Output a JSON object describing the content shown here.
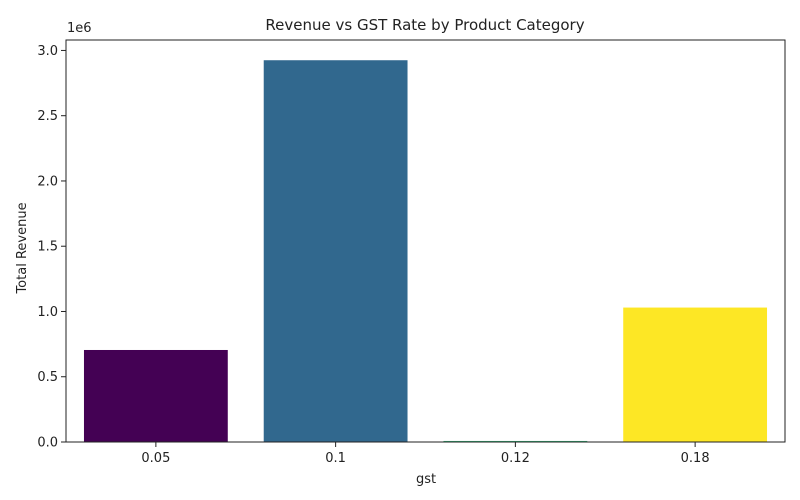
{
  "chart_data": {
    "type": "bar",
    "title": "Revenue vs GST Rate by Product Category",
    "xlabel": "gst",
    "ylabel": "Total Revenue",
    "y_offset_label": "1e6",
    "categories": [
      "0.05",
      "0.1",
      "0.12",
      "0.18"
    ],
    "values": [
      705000,
      2925000,
      8000,
      1030000
    ],
    "colors": [
      "#440154",
      "#31688e",
      "#35b779",
      "#fde725"
    ],
    "ylim": [
      0,
      3080000
    ],
    "yticks": [
      0,
      500000,
      1000000,
      1500000,
      2000000,
      2500000,
      3000000
    ],
    "ytick_labels": [
      "0.0",
      "0.5",
      "1.0",
      "1.5",
      "2.0",
      "2.5",
      "3.0"
    ],
    "grid": false,
    "legend": "none"
  }
}
